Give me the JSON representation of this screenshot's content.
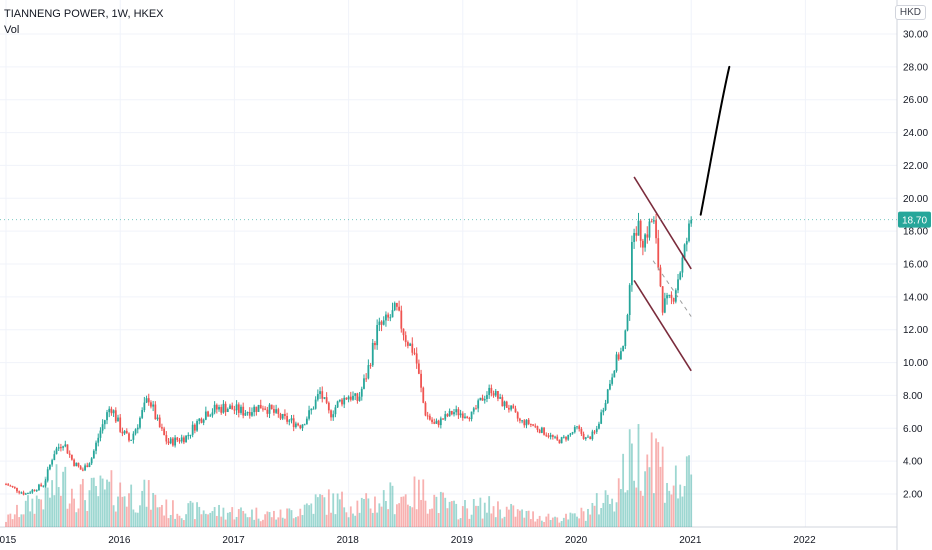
{
  "header": {
    "symbol_line": "TIANNENG POWER, 1W, HKEX",
    "volume_label": "Vol",
    "currency": "HKD"
  },
  "price_tag": {
    "value": "18.70",
    "color": "#26a69a"
  },
  "colors": {
    "up": "#26a69a",
    "down": "#ef5350",
    "channel": "#7b2c3c",
    "drawing": "#000000",
    "grid": "#f0f3fa"
  },
  "chart_data": {
    "type": "candlestick",
    "title": "TIANNENG POWER, 1W, HKEX",
    "ylabel": "HKD",
    "ylim": [
      0,
      31
    ],
    "y_ticks": [
      "2.00",
      "4.00",
      "6.00",
      "8.00",
      "10.00",
      "12.00",
      "14.00",
      "16.00",
      "18.00",
      "20.00",
      "22.00",
      "24.00",
      "26.00",
      "28.00",
      "30.00"
    ],
    "x_ticks": [
      "2015",
      "2016",
      "2017",
      "2018",
      "2019",
      "2020",
      "2021",
      "2022"
    ],
    "last_price": 18.7,
    "price_path": [
      [
        "2015-01",
        2.6
      ],
      [
        "2015-03",
        2.0
      ],
      [
        "2015-05",
        2.6
      ],
      [
        "2015-06",
        4.5
      ],
      [
        "2015-07",
        5.2
      ],
      [
        "2015-08",
        4.0
      ],
      [
        "2015-09",
        3.4
      ],
      [
        "2015-10",
        4.2
      ],
      [
        "2015-11",
        6.0
      ],
      [
        "2015-12",
        7.4
      ],
      [
        "2016-01",
        6.0
      ],
      [
        "2016-02",
        5.2
      ],
      [
        "2016-03",
        6.5
      ],
      [
        "2016-04",
        7.9
      ],
      [
        "2016-05",
        6.2
      ],
      [
        "2016-06",
        5.1
      ],
      [
        "2016-08",
        5.5
      ],
      [
        "2016-09",
        6.3
      ],
      [
        "2016-10",
        7.0
      ],
      [
        "2016-12",
        7.3
      ],
      [
        "2017-02",
        7.0
      ],
      [
        "2017-04",
        7.4
      ],
      [
        "2017-06",
        6.6
      ],
      [
        "2017-08",
        6.2
      ],
      [
        "2017-09",
        7.0
      ],
      [
        "2017-10",
        8.2
      ],
      [
        "2017-11",
        6.8
      ],
      [
        "2017-12",
        7.6
      ],
      [
        "2018-01",
        8.0
      ],
      [
        "2018-02",
        7.7
      ],
      [
        "2018-03",
        9.5
      ],
      [
        "2018-04",
        12.0
      ],
      [
        "2018-05",
        12.5
      ],
      [
        "2018-06",
        13.2
      ],
      [
        "2018-07",
        11.5
      ],
      [
        "2018-08",
        10.5
      ],
      [
        "2018-09",
        7.0
      ],
      [
        "2018-10",
        6.2
      ],
      [
        "2018-11",
        6.6
      ],
      [
        "2018-12",
        7.0
      ],
      [
        "2019-02",
        6.8
      ],
      [
        "2019-03",
        7.8
      ],
      [
        "2019-04",
        8.4
      ],
      [
        "2019-05",
        7.6
      ],
      [
        "2019-06",
        7.2
      ],
      [
        "2019-07",
        6.4
      ],
      [
        "2019-08",
        6.3
      ],
      [
        "2019-10",
        5.6
      ],
      [
        "2019-11",
        5.2
      ],
      [
        "2019-12",
        5.5
      ],
      [
        "2020-01",
        6.0
      ],
      [
        "2020-02",
        5.3
      ],
      [
        "2020-03",
        5.8
      ],
      [
        "2020-04",
        7.8
      ],
      [
        "2020-05",
        10.0
      ],
      [
        "2020-06",
        11.0
      ],
      [
        "2020-07",
        18.5
      ],
      [
        "2020-08",
        17.5
      ],
      [
        "2020-09",
        18.8
      ],
      [
        "2020-10",
        13.5
      ],
      [
        "2020-11",
        13.8
      ],
      [
        "2020-12",
        16.0
      ],
      [
        "2021-01",
        18.7
      ]
    ],
    "volume_path": [
      [
        "2015-01",
        0.5
      ],
      [
        "2015-06",
        2.6
      ],
      [
        "2015-07",
        3.1
      ],
      [
        "2015-09",
        2.2
      ],
      [
        "2015-12",
        2.5
      ],
      [
        "2016-04",
        2.1
      ],
      [
        "2016-06",
        1.2
      ],
      [
        "2016-10",
        1.1
      ],
      [
        "2017-02",
        1.0
      ],
      [
        "2017-06",
        0.8
      ],
      [
        "2017-10",
        1.8
      ],
      [
        "2018-03",
        1.5
      ],
      [
        "2018-05",
        2.0
      ],
      [
        "2018-09",
        2.3
      ],
      [
        "2018-12",
        1.2
      ],
      [
        "2019-04",
        1.4
      ],
      [
        "2019-08",
        0.8
      ],
      [
        "2019-12",
        0.6
      ],
      [
        "2020-02",
        1.0
      ],
      [
        "2020-05",
        2.4
      ],
      [
        "2020-07",
        5.0
      ],
      [
        "2020-09",
        5.5
      ],
      [
        "2020-11",
        2.8
      ],
      [
        "2021-01",
        3.2
      ]
    ],
    "channel": {
      "upper": [
        [
          "2020-07",
          21.3
        ],
        [
          "2021-01",
          15.7
        ]
      ],
      "lower": [
        [
          "2020-07",
          15.0
        ],
        [
          "2021-01",
          9.5
        ]
      ],
      "mid": [
        [
          "2020-09",
          16.2
        ],
        [
          "2021-01",
          12.8
        ]
      ]
    },
    "projection": [
      [
        "2021-02",
        19.0
      ],
      [
        "2021-03",
        22.0
      ],
      [
        "2021-04",
        25.5
      ],
      [
        "2021-05",
        28.0
      ]
    ]
  }
}
